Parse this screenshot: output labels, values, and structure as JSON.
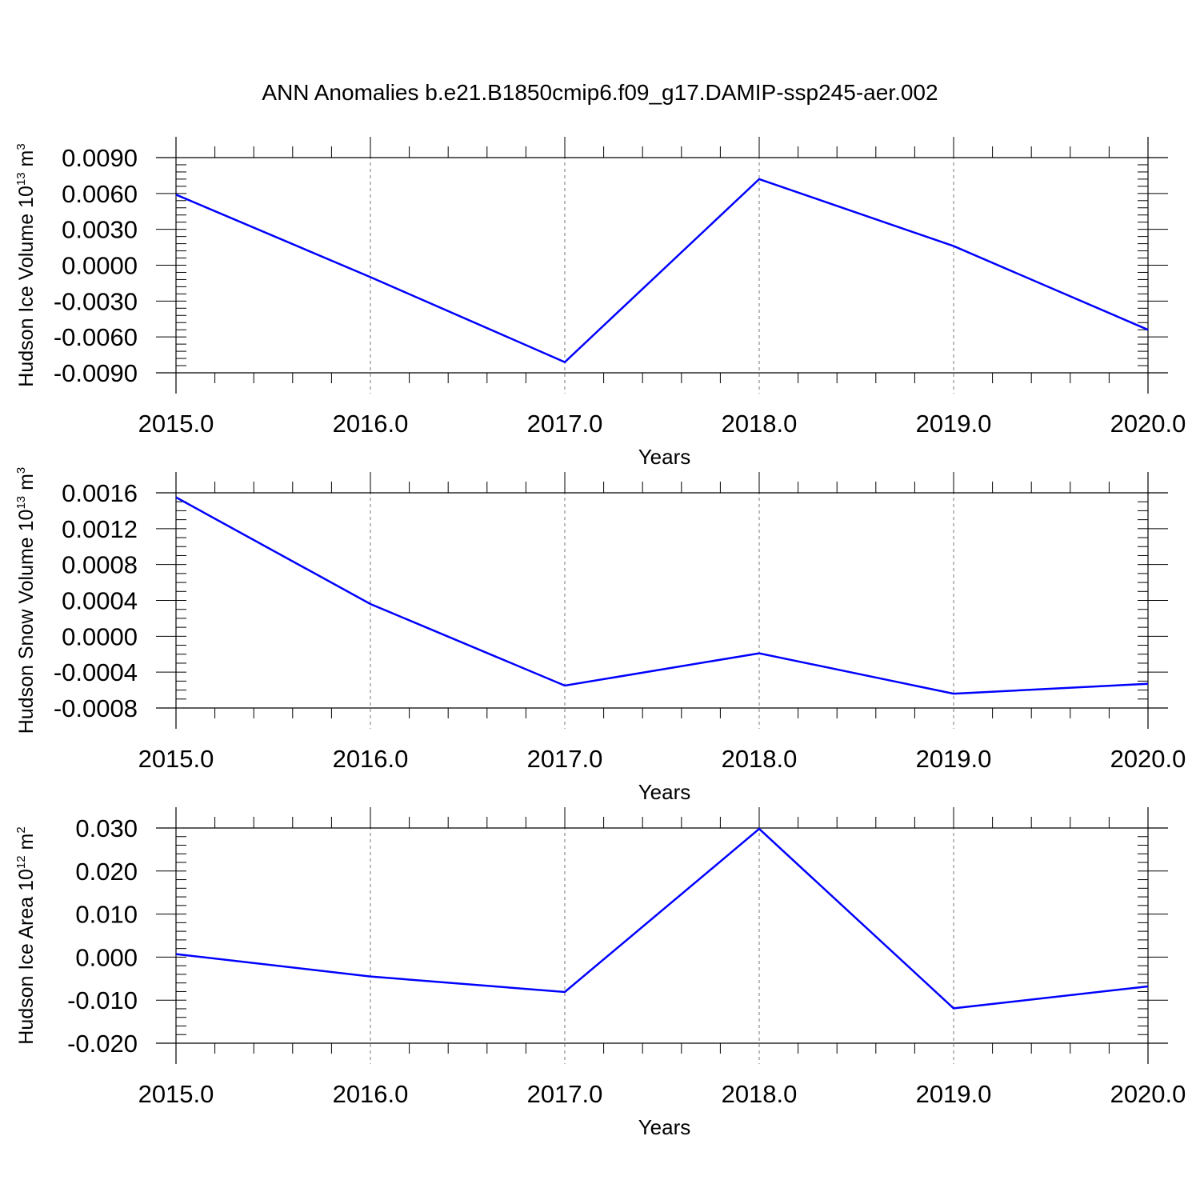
{
  "title": "ANN Anomalies b.e21.B1850cmip6.f09_g17.DAMIP-ssp245-aer.002",
  "colors": {
    "series": "#0000ff",
    "grid": "#777777",
    "axis": "#000000"
  },
  "chart_data": [
    {
      "type": "line",
      "ylabel_prefix": "Hudson Ice Volume 10",
      "ylabel_exp": "13",
      "ylabel_unit": "m",
      "ylabel_unit_exp": "3",
      "xlabel": "Years",
      "xlim": [
        2015,
        2020
      ],
      "ylim": [
        -0.009,
        0.009
      ],
      "x_ticks": [
        "2015.0",
        "2016.0",
        "2017.0",
        "2018.0",
        "2019.0",
        "2020.0"
      ],
      "y_ticks": [
        {
          "value": 0.009,
          "label": "0.0090"
        },
        {
          "value": 0.006,
          "label": "0.0060"
        },
        {
          "value": 0.003,
          "label": "0.0030"
        },
        {
          "value": 0.0,
          "label": "0.0000"
        },
        {
          "value": -0.003,
          "label": "-0.0030"
        },
        {
          "value": -0.006,
          "label": "-0.0060"
        },
        {
          "value": -0.009,
          "label": "-0.0090"
        }
      ],
      "y_minor_step": 0.0006,
      "grid": "vertical-dashed",
      "series": [
        {
          "x": [
            2015,
            2016,
            2017,
            2018,
            2019,
            2020
          ],
          "y": [
            0.0059,
            -0.001,
            -0.0081,
            0.0072,
            0.0016,
            -0.0054
          ]
        }
      ]
    },
    {
      "type": "line",
      "ylabel_prefix": "Hudson Snow Volume 10",
      "ylabel_exp": "13",
      "ylabel_unit": "m",
      "ylabel_unit_exp": "3",
      "xlabel": "Years",
      "xlim": [
        2015,
        2020
      ],
      "ylim": [
        -0.0008,
        0.0016
      ],
      "x_ticks": [
        "2015.0",
        "2016.0",
        "2017.0",
        "2018.0",
        "2019.0",
        "2020.0"
      ],
      "y_ticks": [
        {
          "value": 0.0016,
          "label": "0.0016"
        },
        {
          "value": 0.0012,
          "label": "0.0012"
        },
        {
          "value": 0.0008,
          "label": "0.0008"
        },
        {
          "value": 0.0004,
          "label": "0.0004"
        },
        {
          "value": 0.0,
          "label": "0.0000"
        },
        {
          "value": -0.0004,
          "label": "-0.0004"
        },
        {
          "value": -0.0008,
          "label": "-0.0008"
        }
      ],
      "y_minor_step": 0.0001,
      "grid": "vertical-dashed",
      "series": [
        {
          "x": [
            2015,
            2016,
            2017,
            2018,
            2019,
            2020
          ],
          "y": [
            0.00155,
            0.00036,
            -0.00055,
            -0.00019,
            -0.00064,
            -0.00053
          ]
        }
      ]
    },
    {
      "type": "line",
      "ylabel_prefix": "Hudson Ice Area 10",
      "ylabel_exp": "12",
      "ylabel_unit": "m",
      "ylabel_unit_exp": "2",
      "xlabel": "Years",
      "xlim": [
        2015,
        2020
      ],
      "ylim": [
        -0.02,
        0.03
      ],
      "x_ticks": [
        "2015.0",
        "2016.0",
        "2017.0",
        "2018.0",
        "2019.0",
        "2020.0"
      ],
      "y_ticks": [
        {
          "value": 0.03,
          "label": "0.030"
        },
        {
          "value": 0.02,
          "label": "0.020"
        },
        {
          "value": 0.01,
          "label": "0.010"
        },
        {
          "value": 0.0,
          "label": "0.000"
        },
        {
          "value": -0.01,
          "label": "-0.010"
        },
        {
          "value": -0.02,
          "label": "-0.020"
        }
      ],
      "y_minor_step": 0.002,
      "grid": "vertical-dashed",
      "series": [
        {
          "x": [
            2015,
            2016,
            2017,
            2018,
            2019,
            2020
          ],
          "y": [
            0.0007,
            -0.0045,
            -0.0081,
            0.0298,
            -0.0119,
            -0.0068
          ]
        }
      ]
    }
  ]
}
